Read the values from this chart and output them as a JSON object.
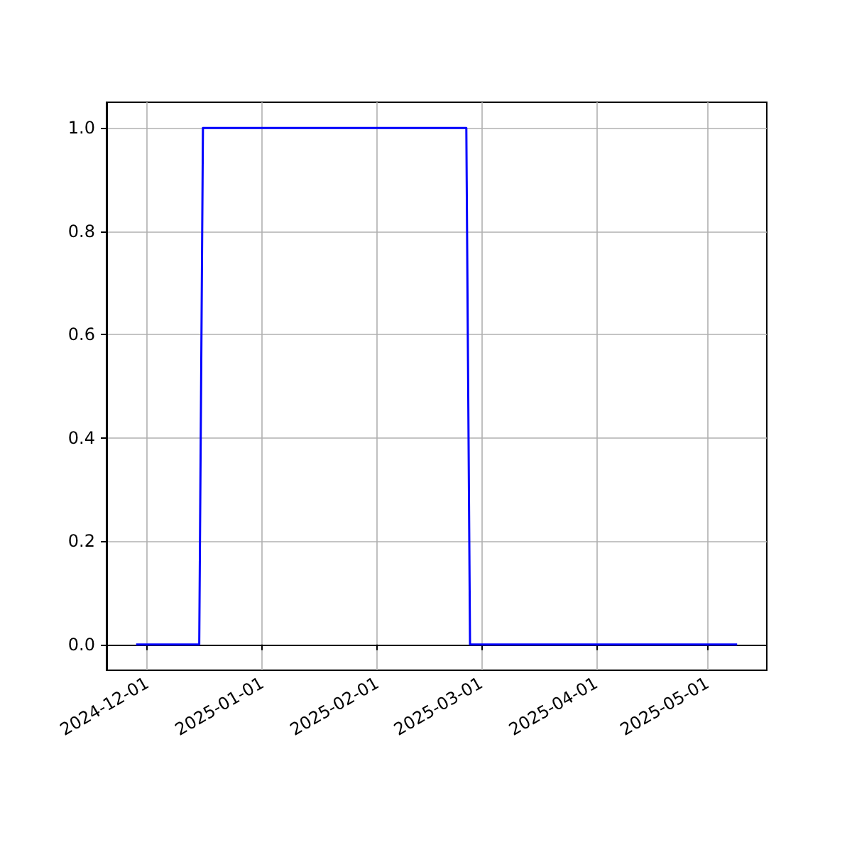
{
  "chart_data": {
    "type": "line",
    "x": [
      "2024-11-28",
      "2024-12-15",
      "2024-12-16",
      "2025-02-25",
      "2025-02-26",
      "2025-05-09"
    ],
    "series": [
      {
        "color": "#0000ff",
        "values": [
          0,
          0,
          1,
          1,
          0,
          0
        ]
      }
    ],
    "xlim": [
      "2024-11-20",
      "2025-05-17"
    ],
    "xticks": [
      "2024-12-01",
      "2025-01-01",
      "2025-02-01",
      "2025-03-01",
      "2025-04-01",
      "2025-05-01"
    ],
    "ylim": [
      -0.05,
      1.05
    ],
    "yticks": [
      {
        "value": 0,
        "label": "0.0"
      },
      {
        "value": 0.2,
        "label": "0.2"
      },
      {
        "value": 0.4,
        "label": "0.4"
      },
      {
        "value": 0.6,
        "label": "0.6"
      },
      {
        "value": 0.8,
        "label": "0.8"
      },
      {
        "value": 1,
        "label": "1.0"
      }
    ],
    "grid": true,
    "line_style": "solid",
    "marker": "none"
  }
}
